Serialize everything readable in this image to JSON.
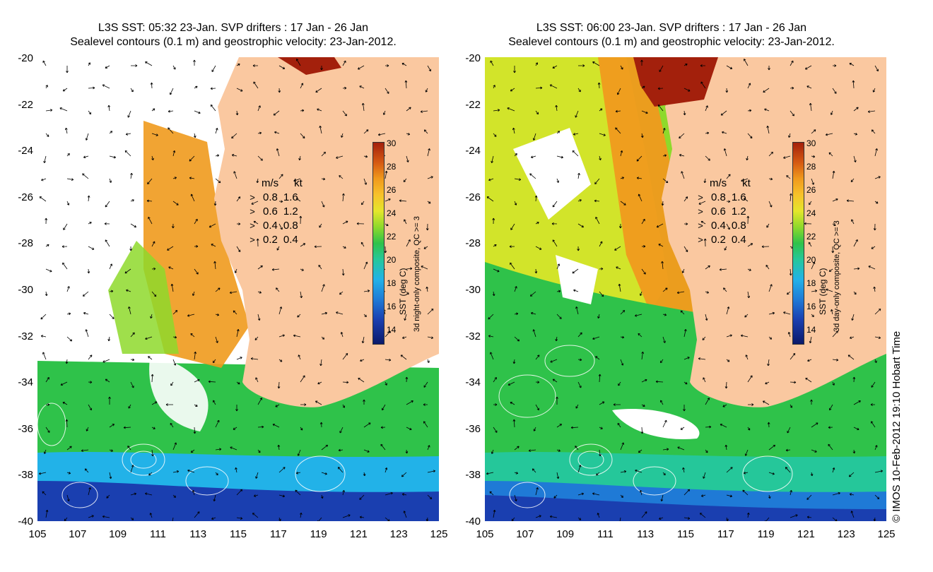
{
  "panels": [
    {
      "title_line1": "L3S SST: 05:32 23-Jan. SVP drifters : 17 Jan - 26 Jan",
      "title_line2": "Sealevel contours (0.1 m) and geostrophic velocity: 23-Jan-2012.",
      "colorbar_label_1": "SST (deg C)",
      "colorbar_label_2": "3d night-only composite, QC >= 3"
    },
    {
      "title_line1": "L3S SST: 06:00 23-Jan. SVP drifters : 17 Jan - 26 Jan",
      "title_line2": "Sealevel contours (0.1 m) and geostrophic velocity: 23-Jan-2012.",
      "colorbar_label_1": "SST (deg C)",
      "colorbar_label_2": "3d day-only composite, QC >= 3"
    }
  ],
  "axes": {
    "y_ticks": [
      "-20",
      "-22",
      "-24",
      "-26",
      "-28",
      "-30",
      "-32",
      "-34",
      "-36",
      "-38",
      "-40"
    ],
    "x_ticks": [
      "105",
      "107",
      "109",
      "111",
      "113",
      "115",
      "117",
      "119",
      "121",
      "123",
      "125"
    ]
  },
  "colorbar_ticks": [
    "30",
    "28",
    "26",
    "24",
    "22",
    "20",
    "18",
    "16",
    "14"
  ],
  "legend": {
    "unit_ms": "m/s",
    "unit_kt": "kt",
    "rows": [
      {
        "ms": "0.8",
        "kt": "1.6"
      },
      {
        "ms": "0.6",
        "kt": "1.2"
      },
      {
        "ms": "0.4",
        "kt": "0.8"
      },
      {
        "ms": "0.2",
        "kt": "0.4"
      }
    ]
  },
  "copyright": "© IMOS 10-Feb-2012 19:10 Hobart Time",
  "colors": {
    "land": "#fac8a0",
    "warm": "#f09a1d",
    "cool": "#2fc24a",
    "cold": "#1a3fb0"
  }
}
